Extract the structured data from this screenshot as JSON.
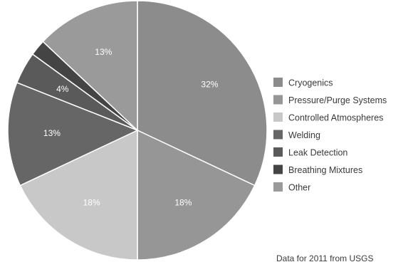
{
  "chart_data": {
    "type": "pie",
    "title": "",
    "slices": [
      {
        "label": "Cryogenics",
        "value": 32,
        "display": "32%",
        "color": "#8c8c8c"
      },
      {
        "label": "Pressure/Purge Systems",
        "value": 18,
        "display": "18%",
        "color": "#969696"
      },
      {
        "label": "Controlled Atmospheres",
        "value": 18,
        "display": "18%",
        "color": "#c8c8c8"
      },
      {
        "label": "Welding",
        "value": 13,
        "display": "13%",
        "color": "#666666"
      },
      {
        "label": "Leak Detection",
        "value": 4,
        "display": "4%",
        "color": "#5a5a5a"
      },
      {
        "label": "Breathing Mixtures",
        "value": 2,
        "display": "",
        "color": "#444444"
      },
      {
        "label": "Other",
        "value": 13,
        "display": "13%",
        "color": "#9a9a9a"
      }
    ],
    "start_angle_deg": 0,
    "direction": "clockwise",
    "legend_position": "right"
  },
  "note": "Data for 2011 from USGS"
}
